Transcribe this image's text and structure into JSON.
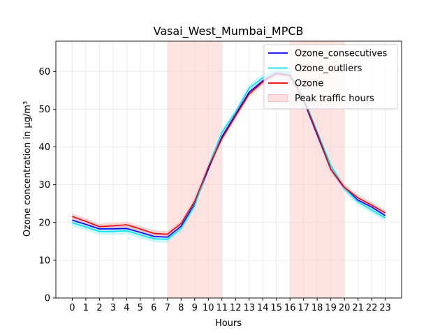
{
  "chart_data": {
    "type": "line",
    "title": "Vasai_West_Mumbai_MPCB",
    "xlabel": "Hours",
    "ylabel": "Ozone concentration in µg/m³",
    "x": [
      0,
      1,
      2,
      3,
      4,
      5,
      6,
      7,
      8,
      9,
      10,
      11,
      12,
      13,
      14,
      15,
      16,
      17,
      18,
      19,
      20,
      21,
      22,
      23
    ],
    "xlim": [
      -1.2,
      24.2
    ],
    "ylim": [
      0,
      68
    ],
    "y_ticks": [
      0,
      10,
      20,
      30,
      40,
      50,
      60
    ],
    "grid": true,
    "legend_position": "top-right",
    "shaded_regions": [
      {
        "name": "Peak traffic hours",
        "x_start": 7,
        "x_end": 11,
        "color": "#ffcccc"
      },
      {
        "name": "",
        "x_start": 16,
        "x_end": 20,
        "color": "#ffcccc"
      }
    ],
    "series": [
      {
        "name": "Ozone_consecutives",
        "color": "#0000ff",
        "values": [
          20.6,
          19.5,
          18.3,
          18.3,
          18.4,
          17.4,
          16.3,
          16.1,
          19.0,
          24.9,
          34.1,
          42.7,
          48.6,
          54.5,
          57.5,
          59.6,
          59.0,
          52.3,
          43.2,
          34.1,
          29.1,
          25.9,
          24.1,
          21.8
        ],
        "band": 0.8,
        "band_color": "#9ab8f0"
      },
      {
        "name": "Ozone_outliers",
        "color": "#00e5ee",
        "values": [
          19.9,
          18.8,
          17.6,
          17.6,
          17.8,
          16.7,
          15.7,
          15.5,
          18.4,
          24.5,
          34.8,
          43.8,
          49.2,
          55.6,
          58.3,
          60.1,
          59.6,
          53.1,
          44.0,
          35.1,
          29.1,
          25.5,
          23.3,
          21.2
        ],
        "band": 0.9,
        "band_color": "#a0f0f5"
      },
      {
        "name": "Ozone",
        "color": "#ee0000",
        "values": [
          21.6,
          20.3,
          18.9,
          19.1,
          19.4,
          18.3,
          17.1,
          16.9,
          19.7,
          25.6,
          34.6,
          42.2,
          48.2,
          54.0,
          57.2,
          59.3,
          58.8,
          52.5,
          43.6,
          34.1,
          29.3,
          26.5,
          24.6,
          22.5
        ],
        "band": 0.8,
        "band_color": "#f4b0b0"
      }
    ]
  }
}
